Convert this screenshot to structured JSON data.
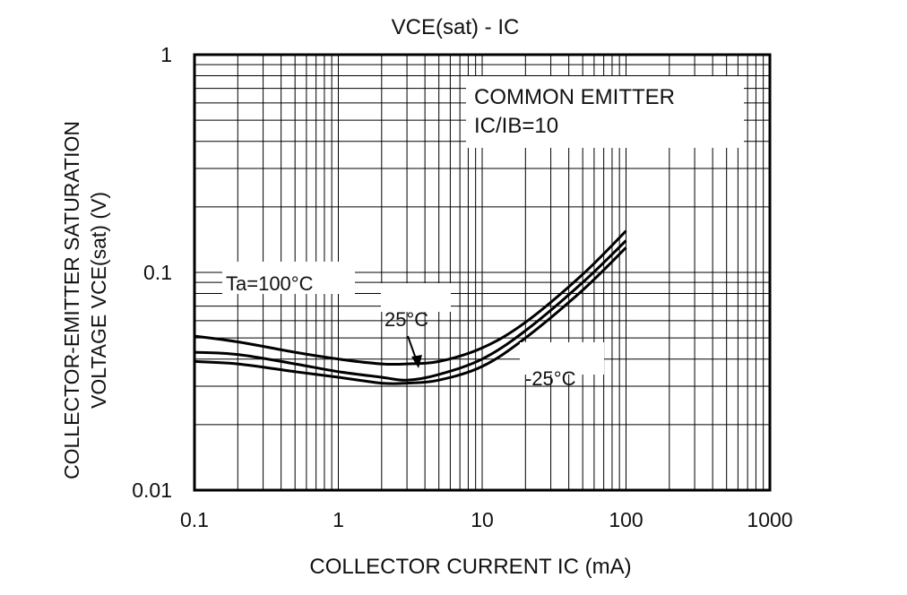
{
  "chart_data": {
    "type": "line",
    "title": "VCE(sat) - IC",
    "xlabel": "COLLECTOR CURRENT IC (mA)",
    "ylabel_lines": [
      "COLLECTOR-EMITTER SATURATION",
      "VOLTAGE  VCE(sat)  (V)"
    ],
    "xscale": "log",
    "yscale": "log",
    "xlim": [
      0.1,
      1000
    ],
    "ylim": [
      0.01,
      1
    ],
    "x_ticks": [
      0.1,
      1,
      10,
      100,
      1000
    ],
    "x_tick_labels": [
      "0.1",
      "1",
      "10",
      "100",
      "1000"
    ],
    "y_ticks": [
      0.01,
      0.1,
      1
    ],
    "y_tick_labels": [
      "0.01",
      "0.1",
      "1"
    ],
    "grid": true,
    "annotation_lines": [
      "COMMON EMITTER",
      "IC/IB=10"
    ],
    "series": [
      {
        "name": "Ta=100°C",
        "x": [
          0.1,
          0.2,
          0.5,
          1,
          2,
          3,
          5,
          10,
          20,
          50,
          100
        ],
        "y": [
          0.051,
          0.048,
          0.043,
          0.04,
          0.038,
          0.038,
          0.039,
          0.045,
          0.059,
          0.098,
          0.155
        ]
      },
      {
        "name": "25°C",
        "x": [
          0.1,
          0.2,
          0.5,
          1,
          2,
          3,
          5,
          10,
          20,
          50,
          100
        ],
        "y": [
          0.043,
          0.042,
          0.038,
          0.035,
          0.033,
          0.032,
          0.034,
          0.04,
          0.054,
          0.09,
          0.14
        ]
      },
      {
        "name": "-25°C",
        "x": [
          0.1,
          0.2,
          0.5,
          1,
          2,
          3,
          5,
          10,
          20,
          50,
          100
        ],
        "y": [
          0.039,
          0.038,
          0.035,
          0.033,
          0.031,
          0.031,
          0.032,
          0.037,
          0.05,
          0.083,
          0.13
        ]
      }
    ]
  }
}
